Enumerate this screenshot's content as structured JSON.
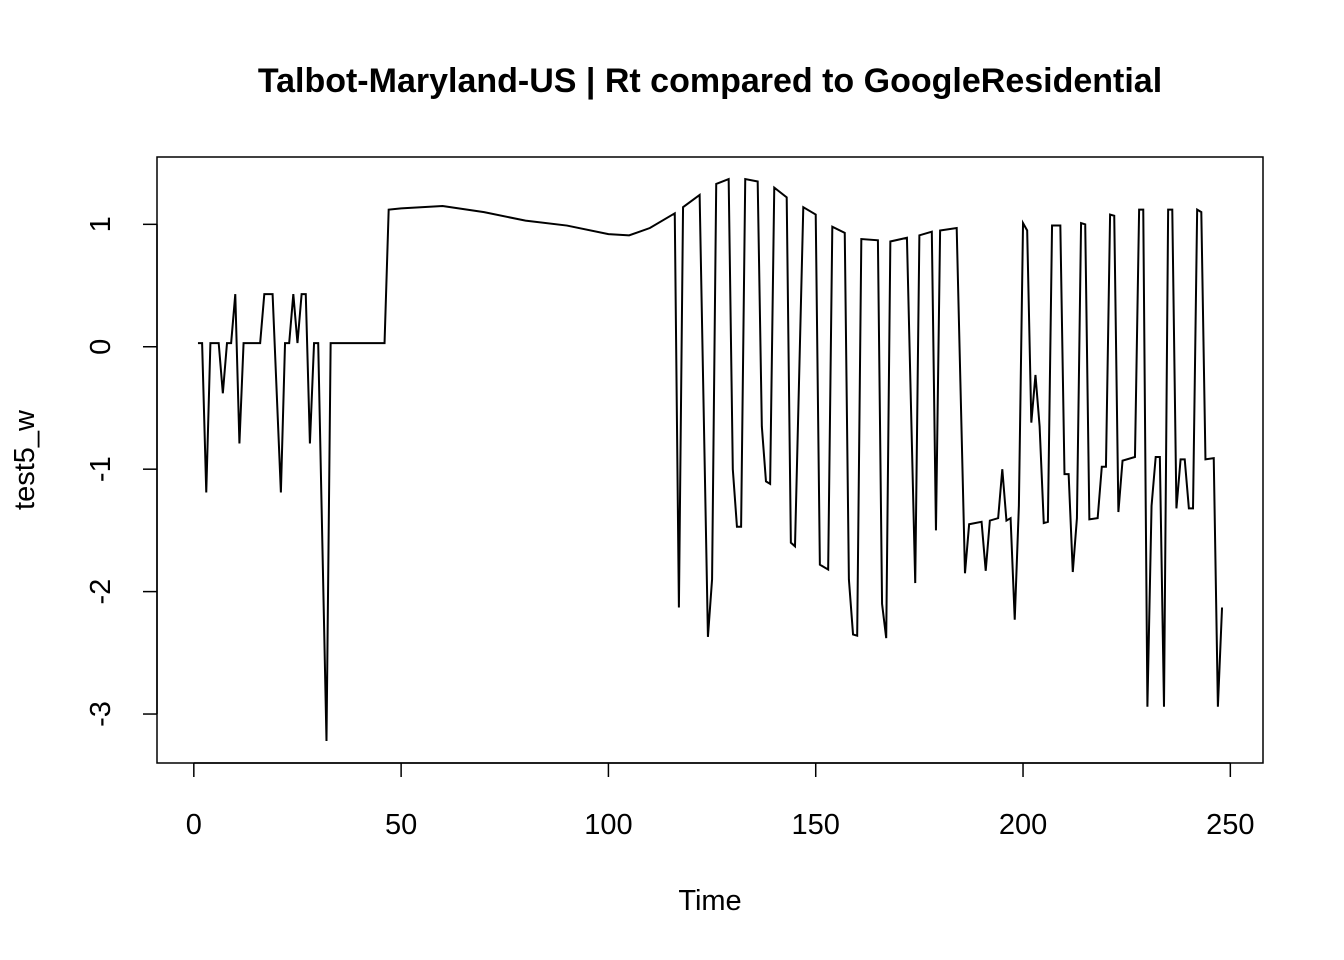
{
  "chart_data": {
    "type": "line",
    "title": "Talbot-Maryland-US | Rt compared to GoogleResidential",
    "xlabel": "Time",
    "ylabel": "test5_w",
    "x": [
      1,
      2,
      3,
      4,
      6,
      7,
      8,
      9,
      10,
      11,
      12,
      16,
      17,
      19,
      21,
      22,
      23,
      24,
      25,
      26,
      27,
      28,
      29,
      30,
      31,
      32,
      33,
      46,
      47,
      50,
      60,
      70,
      80,
      90,
      100,
      105,
      110,
      116,
      117,
      118,
      122,
      124,
      125,
      126,
      129,
      130,
      131,
      132,
      133,
      136,
      137,
      138,
      139,
      140,
      143,
      144,
      145,
      147,
      150,
      151,
      153,
      154,
      157,
      158,
      159,
      160,
      161,
      165,
      166,
      167,
      168,
      172,
      174,
      175,
      178,
      179,
      180,
      184,
      186,
      187,
      190,
      191,
      192,
      194,
      195,
      196,
      197,
      198,
      199,
      200,
      201,
      202,
      203,
      204,
      205,
      206,
      207,
      209,
      210,
      211,
      212,
      213,
      214,
      215,
      216,
      218,
      219,
      220,
      221,
      222,
      223,
      224,
      227,
      228,
      229,
      230,
      231,
      232,
      233,
      234,
      235,
      236,
      237,
      238,
      239,
      240,
      241,
      242,
      243,
      244,
      246,
      247,
      248
    ],
    "values": [
      0.03,
      0.03,
      -1.19,
      0.03,
      0.03,
      -0.38,
      0.03,
      0.03,
      0.43,
      -0.79,
      0.03,
      0.03,
      0.43,
      0.43,
      -1.19,
      0.03,
      0.03,
      0.43,
      0.03,
      0.43,
      0.43,
      -0.79,
      0.03,
      0.03,
      -1.6,
      -3.22,
      0.03,
      0.03,
      1.12,
      1.13,
      1.15,
      1.1,
      1.03,
      0.99,
      0.92,
      0.91,
      0.97,
      1.09,
      -2.13,
      1.14,
      1.24,
      -2.37,
      -1.9,
      1.33,
      1.37,
      -1.0,
      -1.47,
      -1.47,
      1.37,
      1.35,
      -0.65,
      -1.1,
      -1.12,
      1.3,
      1.22,
      -1.6,
      -1.63,
      1.14,
      1.08,
      -1.78,
      -1.82,
      0.98,
      0.93,
      -1.9,
      -2.35,
      -2.36,
      0.88,
      0.87,
      -2.1,
      -2.38,
      0.86,
      0.89,
      -1.93,
      0.91,
      0.94,
      -1.5,
      0.95,
      0.97,
      -1.85,
      -1.45,
      -1.43,
      -1.83,
      -1.42,
      -1.4,
      -1.0,
      -1.42,
      -1.4,
      -2.23,
      -1.3,
      1.01,
      0.95,
      -0.62,
      -0.23,
      -0.65,
      -1.44,
      -1.43,
      0.99,
      0.99,
      -1.04,
      -1.04,
      -1.84,
      -1.4,
      1.01,
      1.0,
      -1.41,
      -1.4,
      -0.98,
      -0.98,
      1.08,
      1.07,
      -1.35,
      -0.93,
      -0.9,
      1.12,
      1.12,
      -2.94,
      -1.3,
      -0.9,
      -0.9,
      -2.94,
      1.12,
      1.12,
      -1.32,
      -0.92,
      -0.92,
      -1.32,
      -1.32,
      1.12,
      1.1,
      -0.92,
      -0.91,
      -2.94,
      -2.13
    ],
    "color": "#000000",
    "xlim": [
      -8.88,
      257.88
    ],
    "ylim": [
      -3.4,
      1.55
    ],
    "xticks": [
      0,
      50,
      100,
      150,
      200,
      250
    ],
    "yticks": [
      -3,
      -2,
      -1,
      0,
      1
    ]
  }
}
